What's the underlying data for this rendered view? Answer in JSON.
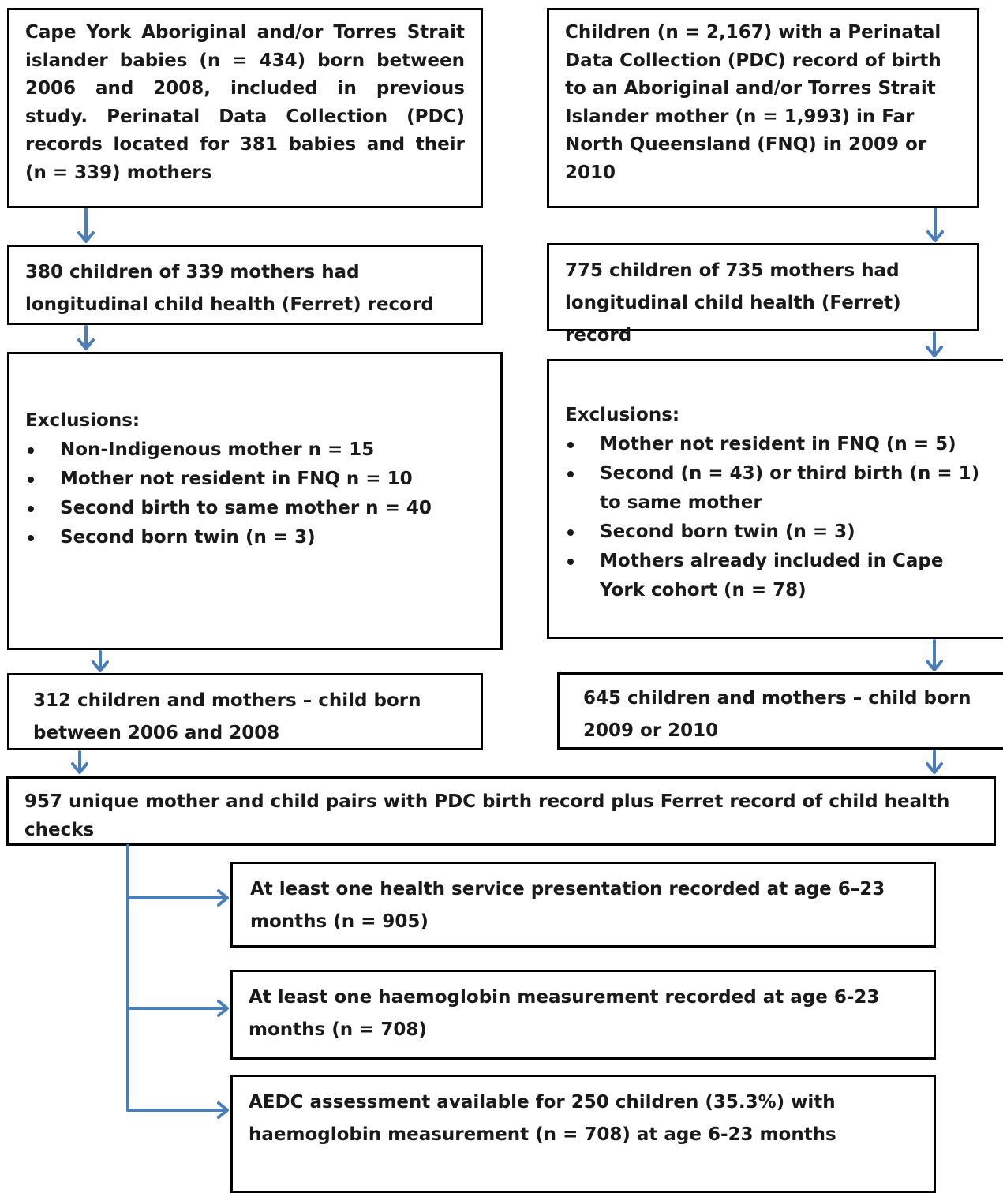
{
  "left": {
    "source": "Cape York Aboriginal and/or Torres Strait islander babies (n = 434) born between 2006 and 2008, included in previous study. Perinatal Data Collection (PDC) records located for 381 babies and their (n = 339) mothers",
    "ferret": "380 children of 339 mothers had longitudinal child health (Ferret) record",
    "exclusions_title": "Exclusions:",
    "exclusions": [
      "Non-Indigenous mother n = 15",
      "Mother not resident in FNQ n = 10",
      "Second birth to same mother n = 40",
      "Second born twin (n = 3)"
    ],
    "final": "312 children and mothers – child born between 2006 and 2008"
  },
  "right": {
    "source": "Children (n = 2,167) with a Perinatal Data Collection (PDC) record of birth to an Aboriginal and/or Torres Strait Islander mother (n = 1,993) in Far North Queensland (FNQ) in 2009 or 2010",
    "ferret": "775 children of 735 mothers had longitudinal child health (Ferret) record",
    "exclusions_title": "Exclusions:",
    "exclusions": [
      "Mother not resident in FNQ (n = 5)",
      "Second (n = 43) or third birth (n = 1) to same mother",
      "Second born twin (n = 3)",
      "Mothers already included in Cape York cohort (n = 78)"
    ],
    "final": "645 children and mothers – child born 2009 or 2010"
  },
  "combined": "957 unique mother and child pairs with PDC birth record plus Ferret record of child health checks",
  "outcomes": [
    "At least one health service presentation recorded at age 6–23 months (n = 905)",
    "At least one haemoglobin measurement recorded at age 6-23 months (n = 708)",
    "AEDC assessment available for 250 children (35.3%) with haemoglobin measurement (n = 708) at age 6-23 months"
  ],
  "colors": {
    "arrow": "#4a7ebb",
    "border": "#000000"
  }
}
